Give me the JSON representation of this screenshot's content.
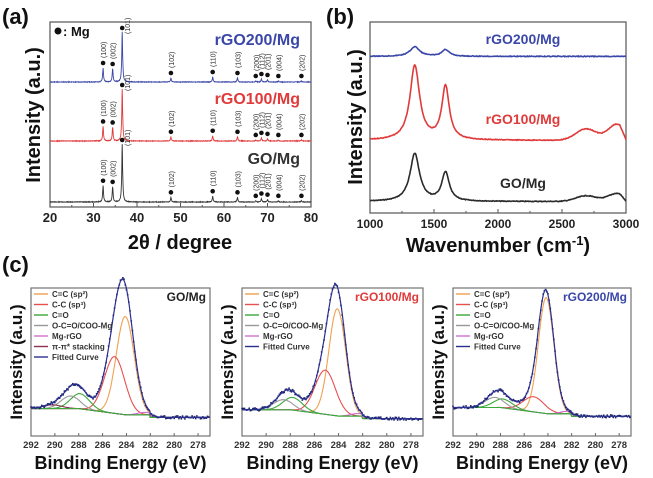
{
  "chart_data": [
    {
      "panel": "(a)",
      "type": "line",
      "title": "",
      "xlabel": "2θ / degree",
      "ylabel": "Intensity (a.u.)",
      "xlim": [
        20,
        80
      ],
      "xticks": [
        20,
        30,
        40,
        50,
        60,
        70,
        80
      ],
      "legend": "● : Mg",
      "series": [
        {
          "name": "rGO200/Mg",
          "color": "#3a47a8",
          "offset": 2
        },
        {
          "name": "rGO100/Mg",
          "color": "#e03a3a",
          "offset": 1
        },
        {
          "name": "GO/Mg",
          "color": "#333333",
          "offset": 0
        }
      ],
      "peaks": [
        {
          "hkl": "(100)",
          "two_theta": 32.2,
          "rel_intensity": 0.28
        },
        {
          "hkl": "(002)",
          "two_theta": 34.4,
          "rel_intensity": 0.26
        },
        {
          "hkl": "(101)",
          "two_theta": 36.6,
          "rel_intensity": 1.0
        },
        {
          "hkl": "(102)",
          "two_theta": 47.8,
          "rel_intensity": 0.08
        },
        {
          "hkl": "(110)",
          "two_theta": 57.4,
          "rel_intensity": 0.1
        },
        {
          "hkl": "(103)",
          "two_theta": 63.1,
          "rel_intensity": 0.08
        },
        {
          "hkl": "(200)",
          "two_theta": 67.3,
          "rel_intensity": 0.02
        },
        {
          "hkl": "(112)",
          "two_theta": 68.6,
          "rel_intensity": 0.06
        },
        {
          "hkl": "(201)",
          "two_theta": 70.0,
          "rel_intensity": 0.04
        },
        {
          "hkl": "(004)",
          "two_theta": 72.5,
          "rel_intensity": 0.02
        },
        {
          "hkl": "(202)",
          "two_theta": 77.8,
          "rel_intensity": 0.02
        }
      ]
    },
    {
      "panel": "(b)",
      "type": "line",
      "xlabel": "Wavenumber (cm⁻¹)",
      "ylabel": "Intensity (a.u.)",
      "xlim": [
        1000,
        3000
      ],
      "xticks": [
        1000,
        1500,
        2000,
        2500,
        3000
      ],
      "series": [
        {
          "name": "rGO200/Mg",
          "color": "#3a47a8",
          "baseline": 0.82,
          "D_peak": 0.05,
          "G_peak": 0.035,
          "band2D": 0.0
        },
        {
          "name": "rGO100/Mg",
          "color": "#e03a3a",
          "baseline": 0.38,
          "D_peak": 0.39,
          "G_peak": 0.28,
          "band2D": 0.06
        },
        {
          "name": "GO/Mg",
          "color": "#2a2a2a",
          "baseline": 0.06,
          "D_peak": 0.25,
          "G_peak": 0.15,
          "band2D": 0.03
        }
      ],
      "bands": {
        "D": 1350,
        "G": 1590,
        "2D": 2690,
        "D_G": 2930
      }
    },
    {
      "panel": "(c)",
      "type": "line",
      "subplots": [
        {
          "name": "GO/Mg",
          "name_color": "#222222",
          "xlabel": "Binding Energy (eV)",
          "ylabel": "Intensity (a.u.)",
          "xlim": [
            292,
            277
          ],
          "xticks": [
            292,
            290,
            288,
            286,
            284,
            282,
            280,
            278
          ],
          "legend": [
            "C=C (sp²)",
            "C-C (sp³)",
            "C=O",
            "O-C=O/COO-Mg",
            "Mg-rGO",
            "π-π* stacking",
            "Fitted Curve"
          ],
          "components": [
            {
              "label": "C=C (sp²)",
              "center": 284.1,
              "height": 0.78,
              "width": 0.75,
              "color": "#f0a050"
            },
            {
              "label": "C-C (sp³)",
              "center": 285.0,
              "height": 0.45,
              "width": 0.85,
              "color": "#e85050"
            },
            {
              "label": "C=O",
              "center": 287.9,
              "height": 0.12,
              "width": 0.8,
              "color": "#3aa83a"
            },
            {
              "label": "O-C=O/COO-Mg",
              "center": 288.7,
              "height": 0.1,
              "width": 0.8,
              "color": "#999999"
            },
            {
              "label": "Mg-rGO",
              "center": 282.5,
              "height": 0.02,
              "width": 0.6,
              "color": "#d070d0"
            },
            {
              "label": "π-π* stacking",
              "center": 290.2,
              "height": 0.03,
              "width": 0.8,
              "color": "#8a3050"
            }
          ]
        },
        {
          "name": "rGO100/Mg",
          "name_color": "#e03a3a",
          "xlabel": "Binding Energy (eV)",
          "ylabel": "Intensity (a.u.)",
          "xlim": [
            292,
            277
          ],
          "xticks": [
            292,
            290,
            288,
            286,
            284,
            282,
            280,
            278
          ],
          "legend": [
            "C=C (sp²)",
            "C-C (sp³)",
            "C=O",
            "O-C=O/COO-Mg",
            "Mg-rGO",
            "Fitted Curve"
          ],
          "components": [
            {
              "label": "C=C (sp²)",
              "center": 284.1,
              "height": 0.85,
              "width": 0.7,
              "color": "#f0a050"
            },
            {
              "label": "C-C (sp³)",
              "center": 285.1,
              "height": 0.35,
              "width": 0.85,
              "color": "#e85050"
            },
            {
              "label": "C=O",
              "center": 287.8,
              "height": 0.1,
              "width": 0.8,
              "color": "#3aa83a"
            },
            {
              "label": "O-C=O/COO-Mg",
              "center": 288.6,
              "height": 0.08,
              "width": 0.8,
              "color": "#999999"
            },
            {
              "label": "Mg-rGO",
              "center": 282.4,
              "height": 0.02,
              "width": 0.6,
              "color": "#d070d0"
            }
          ]
        },
        {
          "name": "rGO200/Mg",
          "name_color": "#3a47a8",
          "xlabel": "Binding Energy (eV)",
          "ylabel": "Intensity (a.u.)",
          "xlim": [
            292,
            277
          ],
          "xticks": [
            292,
            290,
            288,
            286,
            284,
            282,
            280,
            278
          ],
          "legend": [
            "C=C (sp²)",
            "C-C (sp³)",
            "C=O",
            "O-C=O/COO-Mg",
            "Mg-rGO",
            "Fitted Curve"
          ],
          "components": [
            {
              "label": "C=C (sp²)",
              "center": 284.15,
              "height": 0.92,
              "width": 0.65,
              "color": "#f0a050"
            },
            {
              "label": "C-C (sp³)",
              "center": 285.2,
              "height": 0.12,
              "width": 0.9,
              "color": "#e85050"
            },
            {
              "label": "C=O",
              "center": 287.8,
              "height": 0.07,
              "width": 0.8,
              "color": "#3aa83a"
            },
            {
              "label": "O-C=O/COO-Mg",
              "center": 288.5,
              "height": 0.08,
              "width": 0.8,
              "color": "#999999"
            },
            {
              "label": "Mg-rGO",
              "center": 282.4,
              "height": 0.02,
              "width": 0.6,
              "color": "#d070d0"
            }
          ]
        }
      ],
      "fit_color": "#2a2f8f"
    }
  ],
  "labels": {
    "a": "(a)",
    "b": "(b)",
    "c": "(c)"
  }
}
